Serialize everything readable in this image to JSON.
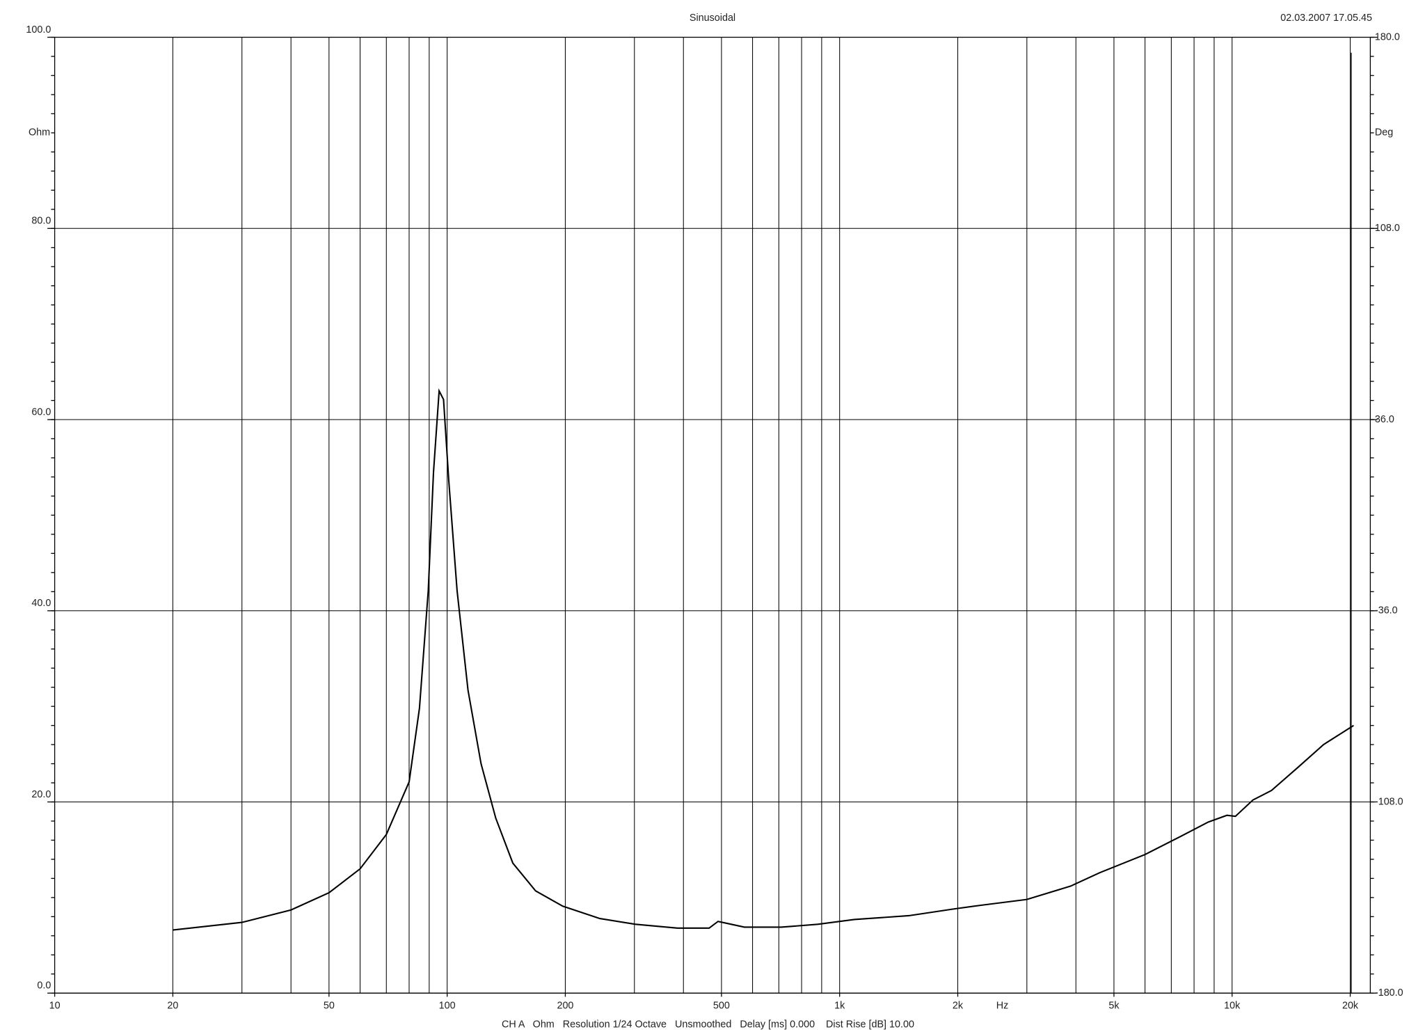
{
  "chart_data": {
    "type": "line",
    "title": "Sinusoidal",
    "timestamp": "02.03.2007 17.05.45",
    "footer": "CH A   Ohm   Resolution 1/24 Octave   Unsmoothed   Delay [ms] 0.000    Dist Rise [dB] 10.00",
    "ylabel": "Ohm",
    "y2label": "Deg",
    "xlabel": "Hz",
    "log_x": true,
    "grid": true,
    "xlim": [
      10,
      22500
    ],
    "xticks": [
      10,
      20,
      50,
      100,
      200,
      500,
      {
        "value": 1000,
        "label": "1k"
      },
      {
        "value": 2000,
        "label": "2k"
      },
      {
        "value": 5000,
        "label": "5k"
      },
      {
        "value": 10000,
        "label": "10k"
      },
      {
        "value": 20000,
        "label": "20k"
      }
    ],
    "xgrid": [
      20,
      30,
      40,
      50,
      60,
      70,
      80,
      90,
      100,
      200,
      300,
      400,
      500,
      600,
      700,
      800,
      900,
      1000,
      2000,
      3000,
      4000,
      5000,
      6000,
      7000,
      8000,
      9000,
      10000,
      20000
    ],
    "ylim": [
      0,
      100
    ],
    "yticks": [
      {
        "value": 0,
        "label": "0.0"
      },
      {
        "value": 20,
        "label": "20.0"
      },
      {
        "value": 40,
        "label": "40.0"
      },
      {
        "value": 60,
        "label": "60.0"
      },
      {
        "value": 80,
        "label": "80.0"
      },
      {
        "value": 100,
        "label": "100.0"
      }
    ],
    "y2lim": [
      -180,
      180
    ],
    "y2ticks": [
      {
        "value": -180,
        "label": "-180.0"
      },
      {
        "value": -108,
        "label": "-108.0"
      },
      {
        "value": -36,
        "label": "-36.0"
      },
      {
        "value": 36,
        "label": "36.0"
      },
      {
        "value": 108,
        "label": "108.0"
      },
      {
        "value": 180,
        "label": "180.0"
      }
    ],
    "series": [
      {
        "name": "Ohm",
        "color": "#000000",
        "x": [
          20,
          30,
          40,
          50,
          60,
          70,
          80,
          85,
          89.5,
          92.3,
          95.4,
          97.9,
          101,
          106,
          113,
          122,
          133,
          147,
          168,
          197,
          245,
          302,
          386,
          465,
          490,
          516,
          572,
          710,
          880,
          1090,
          1500,
          1950,
          2300,
          3000,
          3880,
          4600,
          6000,
          7400,
          8700,
          9700,
          10200,
          11300,
          12600,
          14700,
          17100,
          20400
        ],
        "values": [
          6.6,
          7.4,
          8.7,
          10.5,
          13.0,
          16.6,
          22.1,
          29.8,
          42.1,
          54.5,
          63.0,
          62.1,
          53.5,
          42.1,
          31.7,
          24.0,
          18.3,
          13.6,
          10.7,
          9.1,
          7.8,
          7.2,
          6.8,
          6.8,
          7.5,
          7.3,
          6.9,
          6.9,
          7.2,
          7.7,
          8.1,
          8.8,
          9.2,
          9.8,
          11.2,
          12.6,
          14.5,
          16.4,
          17.9,
          18.6,
          18.5,
          20.2,
          21.2,
          23.6,
          26.0,
          28.0
        ]
      }
    ]
  }
}
